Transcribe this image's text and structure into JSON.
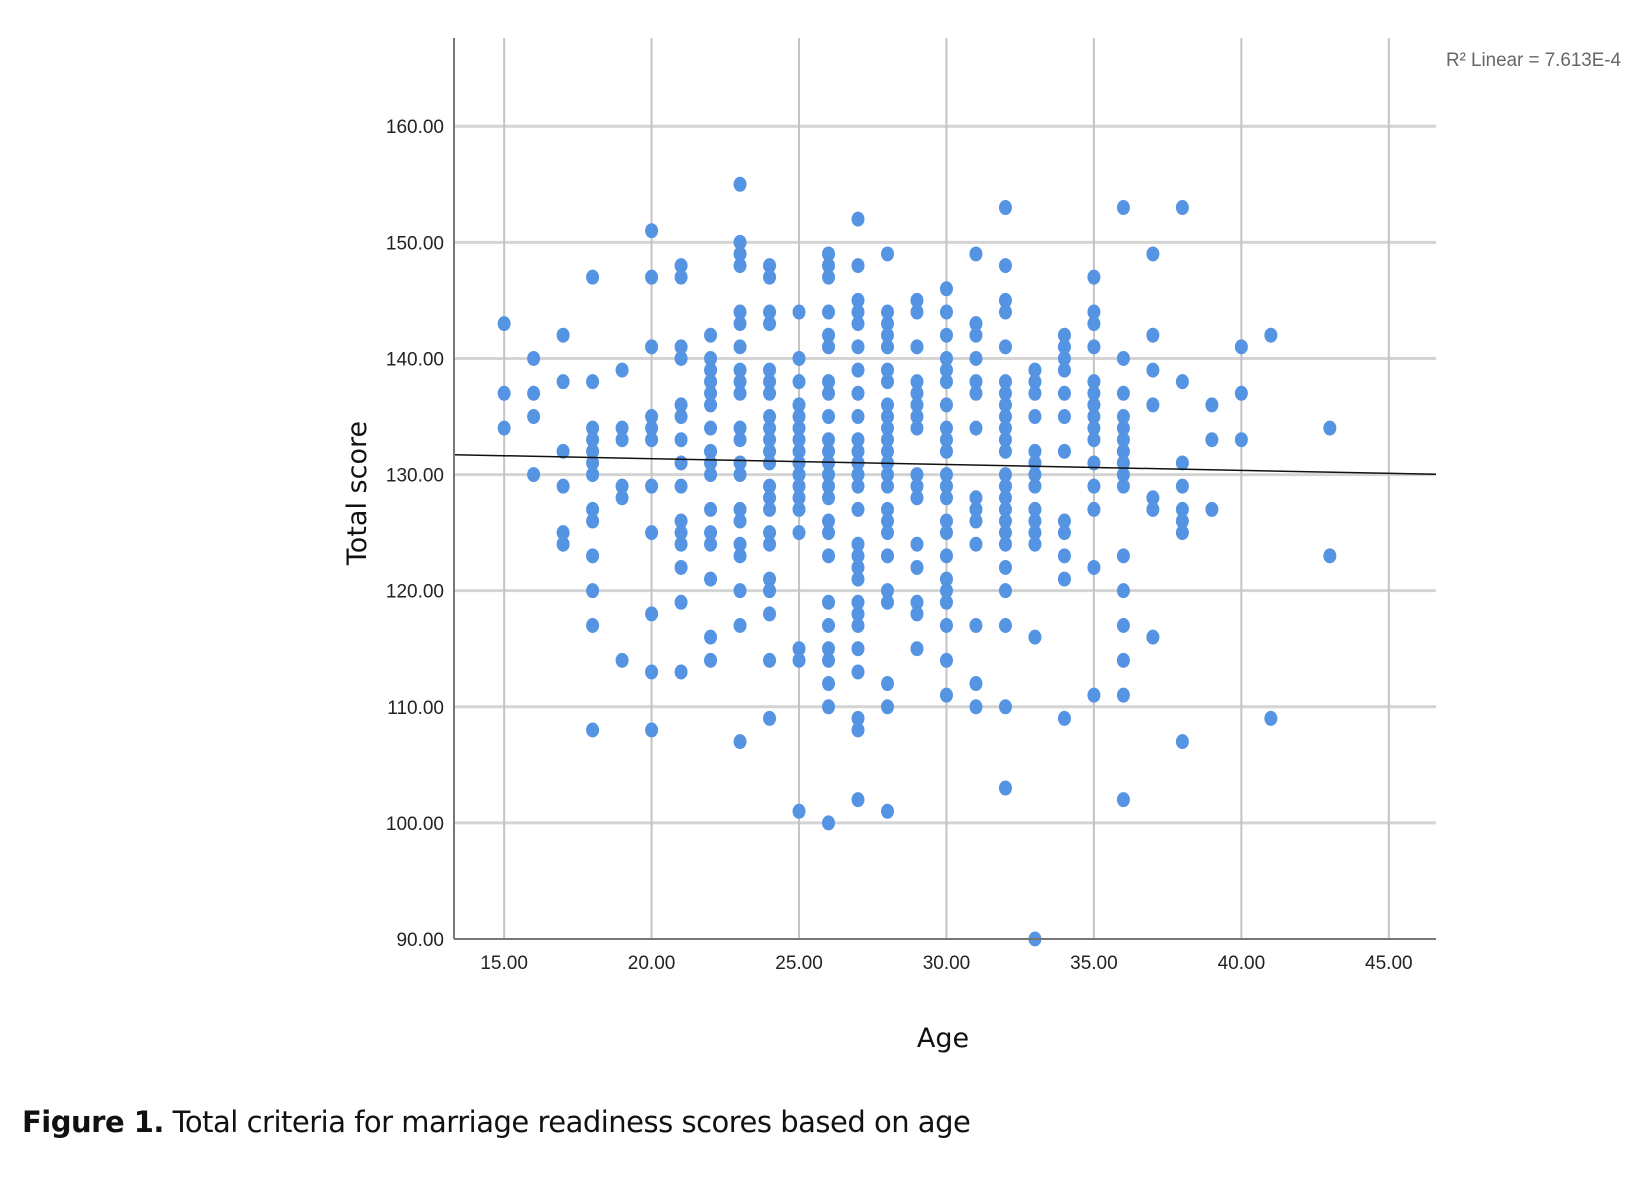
{
  "chart_data": {
    "type": "scatter",
    "xlabel": "Age",
    "ylabel": "Total score",
    "xlim": [
      13.3,
      46.6
    ],
    "ylim": [
      90,
      167.6
    ],
    "x_ticks": [
      "15.00",
      "20.00",
      "25.00",
      "30.00",
      "35.00",
      "40.00",
      "45.00"
    ],
    "x_tick_values": [
      15,
      20,
      25,
      30,
      35,
      40,
      45
    ],
    "y_ticks": [
      "90.00",
      "100.00",
      "110.00",
      "120.00",
      "130.00",
      "140.00",
      "150.00",
      "160.00"
    ],
    "y_tick_values": [
      90,
      100,
      110,
      120,
      130,
      140,
      150,
      160
    ],
    "grid": true,
    "fit_label": "R² Linear = 7.613E-4",
    "fit_line": {
      "intercept": 132.38,
      "slope": -0.0505
    },
    "point_color": "#5593e3",
    "points_by_age": {
      "15": [
        143,
        137,
        134
      ],
      "16": [
        140,
        137,
        135,
        130
      ],
      "17": [
        142,
        138,
        132,
        129,
        125,
        124
      ],
      "18": [
        147,
        138,
        134,
        133,
        132,
        131,
        130,
        127,
        126,
        123,
        120,
        117,
        108
      ],
      "19": [
        139,
        134,
        133,
        129,
        128,
        114
      ],
      "20": [
        151,
        147,
        141,
        135,
        134,
        133,
        129,
        125,
        118,
        113,
        108
      ],
      "21": [
        148,
        147,
        141,
        140,
        136,
        135,
        133,
        131,
        129,
        126,
        125,
        124,
        122,
        119,
        113
      ],
      "22": [
        142,
        140,
        139,
        138,
        137,
        136,
        134,
        132,
        131,
        130,
        127,
        125,
        124,
        121,
        116,
        114
      ],
      "23": [
        155,
        150,
        149,
        148,
        144,
        143,
        141,
        139,
        138,
        137,
        134,
        133,
        131,
        130,
        127,
        126,
        124,
        123,
        120,
        117,
        107
      ],
      "24": [
        148,
        147,
        144,
        143,
        139,
        138,
        137,
        135,
        134,
        133,
        132,
        131,
        129,
        128,
        127,
        125,
        124,
        121,
        120,
        118,
        114,
        109
      ],
      "25": [
        144,
        140,
        138,
        136,
        135,
        134,
        133,
        132,
        131,
        130,
        129,
        128,
        127,
        125,
        115,
        114,
        101
      ],
      "26": [
        149,
        148,
        147,
        144,
        142,
        141,
        138,
        137,
        135,
        133,
        132,
        131,
        130,
        129,
        128,
        126,
        125,
        123,
        119,
        117,
        115,
        114,
        112,
        110,
        100
      ],
      "27": [
        152,
        148,
        145,
        144,
        143,
        141,
        139,
        137,
        135,
        133,
        132,
        131,
        130,
        129,
        127,
        124,
        123,
        122,
        121,
        119,
        118,
        117,
        115,
        113,
        109,
        108,
        102
      ],
      "28": [
        149,
        144,
        143,
        142,
        141,
        139,
        138,
        136,
        135,
        134,
        133,
        132,
        131,
        130,
        129,
        127,
        126,
        125,
        123,
        120,
        119,
        112,
        110,
        101
      ],
      "29": [
        145,
        144,
        141,
        138,
        137,
        136,
        135,
        134,
        130,
        129,
        128,
        124,
        122,
        119,
        118,
        115
      ],
      "30": [
        146,
        144,
        142,
        140,
        139,
        138,
        136,
        134,
        133,
        132,
        130,
        129,
        128,
        126,
        125,
        123,
        121,
        120,
        119,
        117,
        114,
        111
      ],
      "31": [
        149,
        143,
        142,
        140,
        138,
        137,
        134,
        128,
        127,
        126,
        124,
        117,
        112,
        110
      ],
      "32": [
        153,
        148,
        145,
        144,
        141,
        138,
        137,
        136,
        135,
        134,
        133,
        132,
        130,
        129,
        128,
        127,
        126,
        125,
        124,
        122,
        120,
        117,
        110,
        103
      ],
      "33": [
        139,
        138,
        137,
        135,
        132,
        131,
        130,
        129,
        127,
        126,
        125,
        124,
        116,
        90
      ],
      "34": [
        142,
        141,
        140,
        139,
        137,
        135,
        132,
        126,
        125,
        123,
        121,
        109
      ],
      "35": [
        147,
        144,
        143,
        141,
        138,
        137,
        136,
        135,
        134,
        133,
        131,
        129,
        127,
        122,
        111
      ],
      "36": [
        153,
        140,
        137,
        135,
        134,
        133,
        132,
        131,
        130,
        129,
        123,
        120,
        117,
        114,
        111,
        102
      ],
      "37": [
        149,
        142,
        139,
        136,
        128,
        127,
        116
      ],
      "38": [
        153,
        138,
        131,
        129,
        127,
        126,
        125,
        107
      ],
      "39": [
        136,
        133,
        127
      ],
      "40": [
        141,
        137,
        133
      ],
      "41": [
        142,
        109
      ],
      "43": [
        134,
        123
      ]
    }
  },
  "caption": {
    "label": "Figure 1.",
    "text": " Total criteria for marriage readiness scores based on age"
  }
}
